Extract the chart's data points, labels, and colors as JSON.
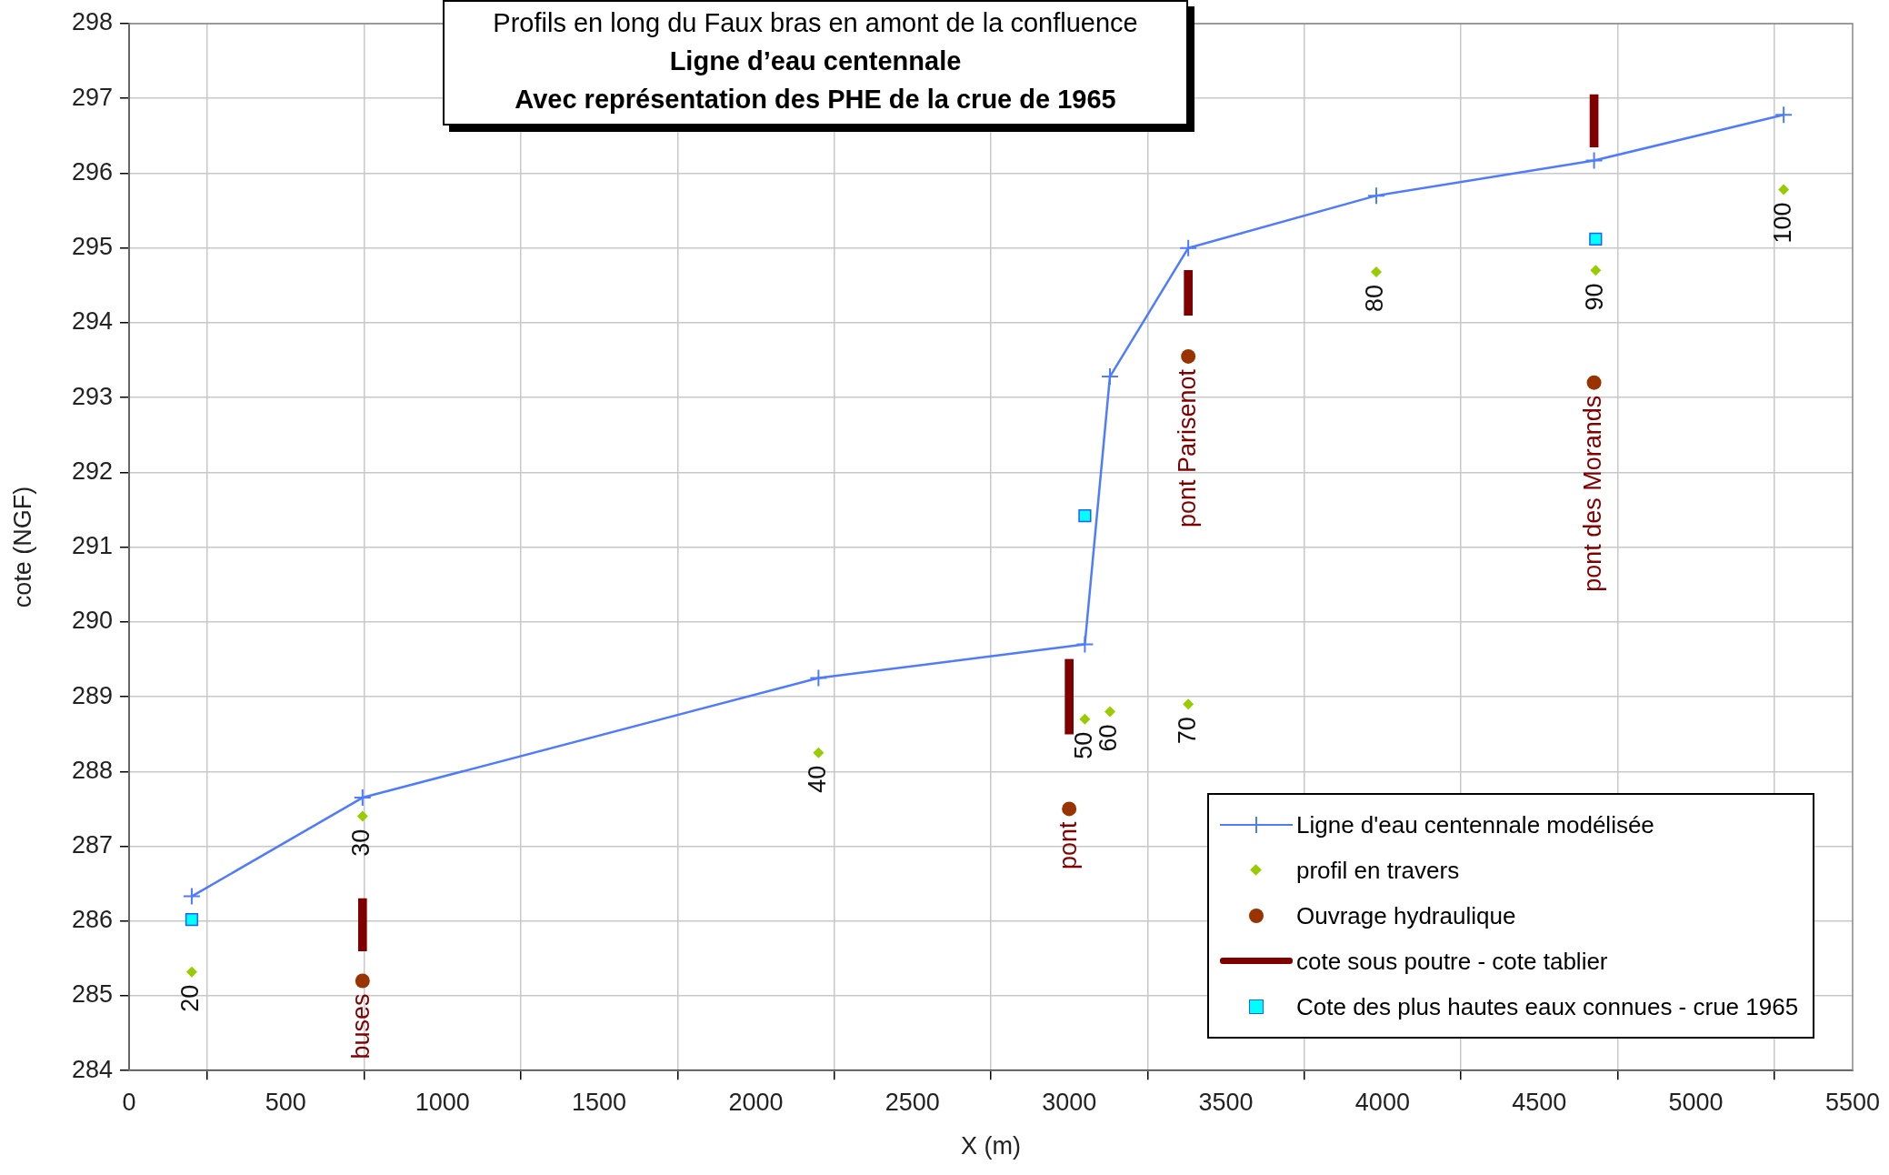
{
  "chart_data": {
    "type": "line",
    "title": "Profils en long du Faux bras en amont de la confluence",
    "subtitle": "Ligne d’eau centennale\nAvec représentation des PHE de la crue de 1965",
    "xlabel": "X (m)",
    "ylabel": "cote (NGF)",
    "xlim": [
      0,
      5500
    ],
    "xticks": [
      0,
      500,
      1000,
      1500,
      2000,
      2500,
      3000,
      3500,
      4000,
      4500,
      5000,
      5500
    ],
    "ylim": [
      284,
      298
    ],
    "yticks": [
      284,
      285,
      286,
      287,
      288,
      289,
      290,
      291,
      292,
      293,
      294,
      295,
      296,
      297,
      298
    ],
    "grid": true,
    "legend": "bottom right",
    "annotations": [
      {
        "text": "20",
        "x": 200,
        "y": 285.32
      },
      {
        "text": "30",
        "x": 745,
        "y": 287.4
      },
      {
        "text": "40",
        "x": 2200,
        "y": 288.25
      },
      {
        "text": "50",
        "x": 3050,
        "y": 288.7
      },
      {
        "text": "60",
        "x": 3130,
        "y": 288.8
      },
      {
        "text": "70",
        "x": 3380,
        "y": 288.9
      },
      {
        "text": "80",
        "x": 3980,
        "y": 294.68
      },
      {
        "text": "90",
        "x": 4680,
        "y": 294.7
      },
      {
        "text": "100",
        "x": 5280,
        "y": 295.78
      },
      {
        "text": "buses",
        "x": 745,
        "y": 285.2
      },
      {
        "text": "pont",
        "x": 3000,
        "y": 287.5
      },
      {
        "text": "pont Parisenot",
        "x": 3380,
        "y": 293.55
      },
      {
        "text": "pont des Morands",
        "x": 4675,
        "y": 293.2
      }
    ],
    "series": [
      {
        "name": "Ligne d'eau centennale modélisée",
        "marker": "cross",
        "color": "#4f7bff",
        "x": [
          200,
          745,
          2200,
          3050,
          3130,
          3380,
          3980,
          4675,
          5280
        ],
        "values": [
          286.33,
          287.65,
          289.25,
          289.7,
          293.28,
          295.0,
          295.7,
          296.17,
          296.78
        ]
      },
      {
        "name": "profil en travers",
        "type": "scatter",
        "marker": "diamond",
        "color": "#99cc00",
        "x": [
          200,
          745,
          2200,
          3050,
          3130,
          3380,
          3980,
          4680,
          5280
        ],
        "values": [
          285.32,
          287.4,
          288.25,
          288.7,
          288.8,
          288.9,
          294.68,
          294.7,
          295.78
        ]
      },
      {
        "name": "Ouvrage hydraulique",
        "type": "scatter",
        "marker": "circle",
        "color": "#993300",
        "x": [
          745,
          3000,
          3380,
          4675
        ],
        "values": [
          285.2,
          287.5,
          293.55,
          293.2
        ]
      },
      {
        "name": "cote sous poutre - cote tablier",
        "type": "bar",
        "color": "#800000",
        "x": [
          745,
          3000,
          3380,
          4675
        ],
        "base": [
          285.6,
          288.5,
          294.1,
          296.35
        ],
        "values": [
          0.7,
          1.0,
          0.6,
          0.7
        ]
      },
      {
        "name": "Cote des plus hautes eaux connues - crue 1965",
        "type": "scatter",
        "marker": "square",
        "color": "#00ffff",
        "x": [
          200,
          3050,
          4680
        ],
        "values": [
          286.02,
          291.42,
          295.12
        ]
      }
    ]
  }
}
